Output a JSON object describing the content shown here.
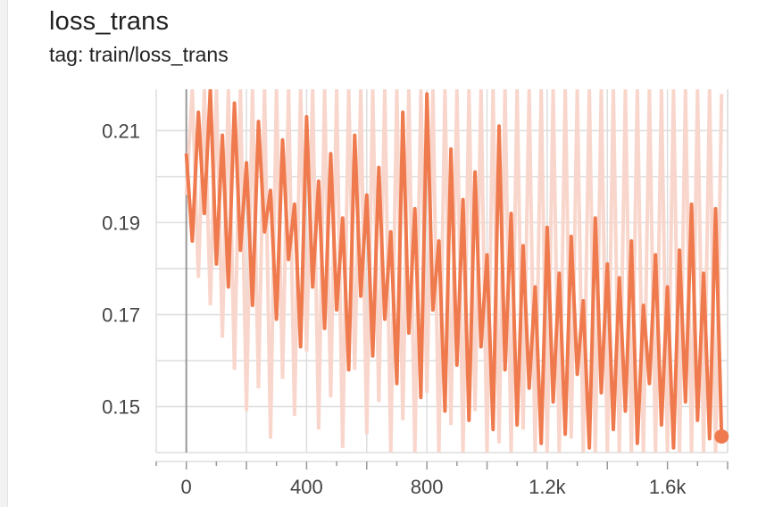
{
  "card": {
    "title": "loss_trans",
    "tag": "tag: train/loss_trans"
  },
  "colors": {
    "line": "#ef7a4e",
    "raw": "#f9d6cb",
    "grid": "#dddddd",
    "axis": "#999999"
  },
  "chart_data": {
    "type": "line",
    "title": "loss_trans",
    "subtitle": "tag: train/loss_trans",
    "xlim": [
      -100,
      1800
    ],
    "ylim": [
      0.14,
      0.219
    ],
    "x_ticks": [
      0,
      400,
      800,
      1200,
      1600
    ],
    "x_tick_labels": [
      "0",
      "400",
      "800",
      "1.2k",
      "1.6k"
    ],
    "y_ticks": [
      0.15,
      0.17,
      0.19,
      0.21
    ],
    "y_tick_labels": [
      "0.15",
      "0.17",
      "0.19",
      "0.21"
    ],
    "grid": true,
    "series": [
      {
        "role": "smoothed",
        "x": [
          0,
          20,
          40,
          60,
          80,
          100,
          120,
          140,
          160,
          180,
          200,
          220,
          240,
          260,
          280,
          300,
          320,
          340,
          360,
          380,
          400,
          420,
          440,
          460,
          480,
          500,
          520,
          540,
          560,
          580,
          600,
          620,
          640,
          660,
          680,
          700,
          720,
          740,
          760,
          780,
          800,
          820,
          840,
          860,
          880,
          900,
          920,
          940,
          960,
          980,
          1000,
          1020,
          1040,
          1060,
          1080,
          1100,
          1120,
          1140,
          1160,
          1180,
          1200,
          1220,
          1240,
          1260,
          1280,
          1300,
          1320,
          1340,
          1360,
          1380,
          1400,
          1420,
          1440,
          1460,
          1480,
          1500,
          1520,
          1540,
          1560,
          1580,
          1600,
          1620,
          1640,
          1660,
          1680,
          1700,
          1720,
          1740,
          1760,
          1780
        ],
        "y": [
          0.205,
          0.186,
          0.214,
          0.192,
          0.219,
          0.181,
          0.209,
          0.176,
          0.216,
          0.184,
          0.203,
          0.172,
          0.212,
          0.188,
          0.197,
          0.169,
          0.208,
          0.182,
          0.194,
          0.163,
          0.213,
          0.176,
          0.199,
          0.167,
          0.205,
          0.171,
          0.191,
          0.158,
          0.209,
          0.174,
          0.196,
          0.161,
          0.202,
          0.169,
          0.188,
          0.155,
          0.214,
          0.166,
          0.193,
          0.152,
          0.218,
          0.171,
          0.186,
          0.149,
          0.206,
          0.159,
          0.195,
          0.147,
          0.201,
          0.163,
          0.183,
          0.145,
          0.211,
          0.158,
          0.192,
          0.146,
          0.185,
          0.154,
          0.176,
          0.142,
          0.189,
          0.151,
          0.179,
          0.144,
          0.187,
          0.157,
          0.173,
          0.141,
          0.191,
          0.153,
          0.181,
          0.145,
          0.178,
          0.149,
          0.186,
          0.142,
          0.172,
          0.155,
          0.183,
          0.146,
          0.176,
          0.141,
          0.184,
          0.151,
          0.194,
          0.147,
          0.179,
          0.143,
          0.193,
          0.143
        ]
      },
      {
        "role": "raw",
        "x": [
          0,
          20,
          40,
          60,
          80,
          100,
          120,
          140,
          160,
          180,
          200,
          220,
          240,
          260,
          280,
          300,
          320,
          340,
          360,
          380,
          400,
          420,
          440,
          460,
          480,
          500,
          520,
          540,
          560,
          580,
          600,
          620,
          640,
          660,
          680,
          700,
          720,
          740,
          760,
          780,
          800,
          820,
          840,
          860,
          880,
          900,
          920,
          940,
          960,
          980,
          1000,
          1020,
          1040,
          1060,
          1080,
          1100,
          1120,
          1140,
          1160,
          1180,
          1200,
          1220,
          1240,
          1260,
          1280,
          1300,
          1320,
          1340,
          1360,
          1380,
          1400,
          1420,
          1440,
          1460,
          1480,
          1500,
          1520,
          1540,
          1560,
          1580,
          1600,
          1620,
          1640,
          1660,
          1680,
          1700,
          1720,
          1740,
          1760,
          1780
        ],
        "y": [
          0.196,
          0.219,
          0.178,
          0.219,
          0.172,
          0.219,
          0.165,
          0.219,
          0.158,
          0.219,
          0.149,
          0.219,
          0.154,
          0.219,
          0.143,
          0.219,
          0.156,
          0.219,
          0.148,
          0.219,
          0.162,
          0.219,
          0.145,
          0.219,
          0.152,
          0.219,
          0.141,
          0.219,
          0.158,
          0.219,
          0.144,
          0.219,
          0.151,
          0.219,
          0.14,
          0.219,
          0.147,
          0.219,
          0.14,
          0.219,
          0.153,
          0.219,
          0.14,
          0.219,
          0.146,
          0.219,
          0.14,
          0.219,
          0.149,
          0.219,
          0.14,
          0.219,
          0.142,
          0.219,
          0.14,
          0.219,
          0.145,
          0.219,
          0.14,
          0.219,
          0.14,
          0.219,
          0.14,
          0.219,
          0.143,
          0.219,
          0.14,
          0.219,
          0.14,
          0.219,
          0.14,
          0.219,
          0.14,
          0.219,
          0.14,
          0.219,
          0.14,
          0.219,
          0.14,
          0.219,
          0.14,
          0.219,
          0.14,
          0.219,
          0.14,
          0.219,
          0.14,
          0.219,
          0.14,
          0.218
        ]
      }
    ],
    "last_point": {
      "x": 1780,
      "y": 0.1435
    }
  }
}
